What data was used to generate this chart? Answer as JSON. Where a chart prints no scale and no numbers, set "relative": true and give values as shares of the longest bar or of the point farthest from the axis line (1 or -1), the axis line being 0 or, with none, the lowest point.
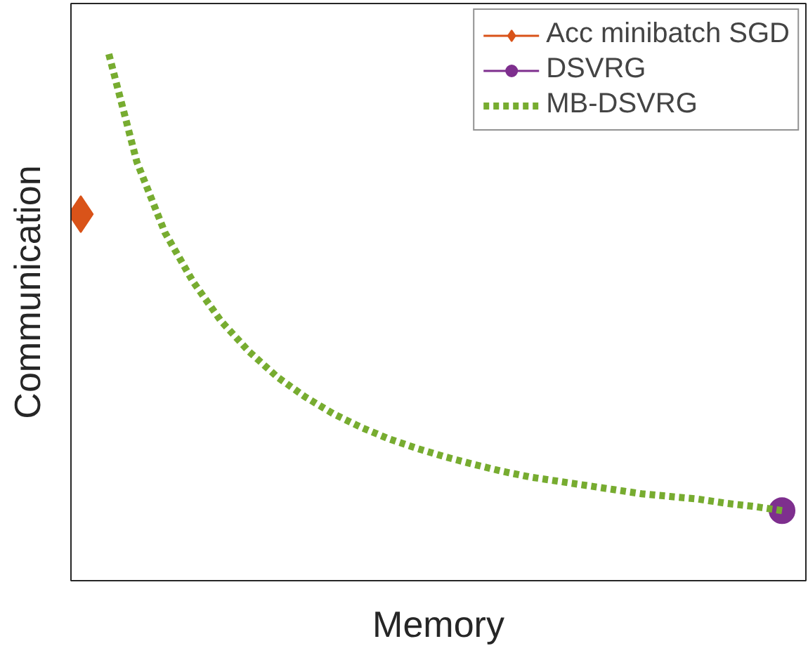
{
  "chart_data": {
    "type": "line",
    "xlabel": "Memory",
    "ylabel": "Communication",
    "relative": true,
    "legend": "top right",
    "categories": [
      null,
      null,
      null,
      null,
      null,
      null,
      null,
      null,
      null,
      null,
      null,
      null,
      null,
      null,
      null,
      null,
      null,
      null,
      null,
      null,
      null,
      null,
      null,
      null,
      null,
      null
    ],
    "series": [
      {
        "name": "Acc minibatch SGD",
        "color": "#d95319",
        "marker": "diamond",
        "line_style": "solid",
        "values": [
          0.696,
          null,
          null,
          null,
          null,
          null,
          null,
          null,
          null,
          null,
          null,
          null,
          null,
          null,
          null,
          null,
          null,
          null,
          null,
          null,
          null,
          null,
          null,
          null,
          null,
          null
        ]
      },
      {
        "name": "DSVRG",
        "color": "#7e2f8e",
        "marker": "circle",
        "line_style": "solid",
        "values": [
          null,
          null,
          null,
          null,
          null,
          null,
          null,
          null,
          null,
          null,
          null,
          null,
          null,
          null,
          null,
          null,
          null,
          null,
          null,
          null,
          null,
          null,
          null,
          null,
          null,
          0.133
        ]
      },
      {
        "name": "MB-DSVRG",
        "color": "#77ac30",
        "marker": "none",
        "line_style": "dotted",
        "values": [
          null,
          1.0,
          0.795,
          0.661,
          0.568,
          0.493,
          0.435,
          0.387,
          0.349,
          0.317,
          0.291,
          0.269,
          0.251,
          0.235,
          0.221,
          0.208,
          0.197,
          0.189,
          0.181,
          0.173,
          0.165,
          0.16,
          0.155,
          0.147,
          0.141,
          0.133
        ]
      }
    ]
  }
}
